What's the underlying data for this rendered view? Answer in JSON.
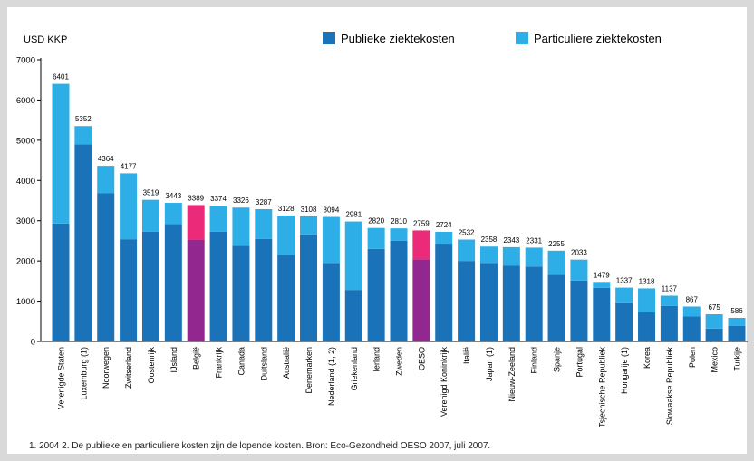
{
  "chart_data": {
    "type": "bar",
    "stacked": true,
    "title": "",
    "ylabel": "USD KKP",
    "xlabel": "",
    "ylim": [
      0,
      7000
    ],
    "yticks": [
      0,
      1000,
      2000,
      3000,
      4000,
      5000,
      6000,
      7000
    ],
    "grid": false,
    "legend_position": "top-right",
    "categories": [
      "Verenigde Staten",
      "Luxemburg (1)",
      "Noorwegen",
      "Zwitserland",
      "Oostenrijk",
      "IJsland",
      "België",
      "Frankrijk",
      "Canada",
      "Duitsland",
      "Australië",
      "Denemarken",
      "Nederland (1, 2)",
      "Griekenland",
      "Ierland",
      "Zweden",
      "OESO",
      "Verenigd Koninkrijk",
      "Italië",
      "Japan (1)",
      "Nieuw-Zeeland",
      "Finland",
      "Spanje",
      "Portugal",
      "Tsjechische Republiek",
      "Hongarije (1)",
      "Korea",
      "Slowaakse Republiek",
      "Polen",
      "Mexico",
      "Turkije"
    ],
    "totals": [
      6401,
      5352,
      4364,
      4177,
      3519,
      3443,
      3389,
      3374,
      3326,
      3287,
      3128,
      3108,
      3094,
      2981,
      2820,
      2810,
      2759,
      2724,
      2532,
      2358,
      2343,
      2331,
      2255,
      2033,
      1479,
      1337,
      1318,
      1137,
      867,
      675,
      586
    ],
    "series": [
      {
        "name": "Publieke ziektekosten",
        "values": [
          2930,
          4900,
          3680,
          2540,
          2730,
          2920,
          2530,
          2730,
          2380,
          2550,
          2150,
          2660,
          1950,
          1280,
          2300,
          2500,
          2040,
          2430,
          2000,
          1950,
          1880,
          1860,
          1660,
          1510,
          1330,
          970,
          720,
          880,
          620,
          320,
          390
        ]
      },
      {
        "name": "Particuliere ziektekosten",
        "values": [
          3471,
          452,
          684,
          1637,
          789,
          523,
          859,
          644,
          946,
          737,
          978,
          448,
          1144,
          1701,
          520,
          310,
          719,
          294,
          532,
          408,
          463,
          471,
          595,
          523,
          149,
          367,
          598,
          257,
          247,
          355,
          196
        ]
      }
    ],
    "highlighted_categories": [
      "België",
      "OESO"
    ]
  },
  "colors": {
    "public": "#1a72b8",
    "private": "#2eaee6",
    "highlight_public": "#92278f",
    "highlight_private": "#ec2a7a",
    "axis": "#000000",
    "frame": "#d9d9d9"
  },
  "footnote": "1. 2004   2. De publieke en particuliere kosten zijn de lopende kosten.  Bron: Eco-Gezondheid OESO 2007, juli 2007."
}
